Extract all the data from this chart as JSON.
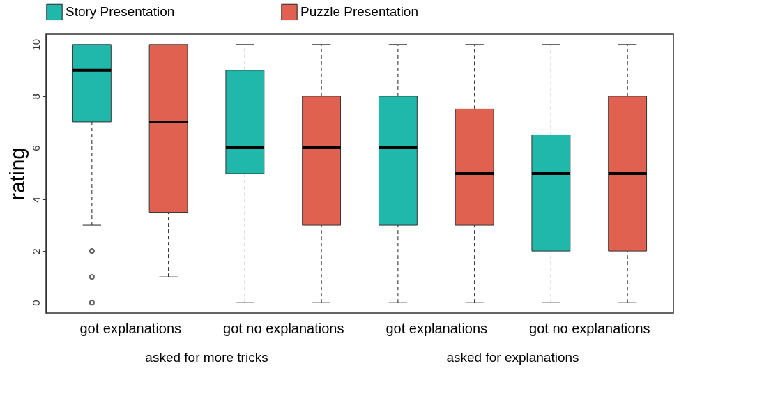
{
  "chart_data": {
    "type": "box",
    "ylabel": "rating",
    "categories": [
      "got explanations",
      "got no explanations",
      "got explanations",
      "got no explanations"
    ],
    "annotations": [
      "asked for more tricks",
      "asked for explanations"
    ],
    "ylim": [
      -0.4,
      10.4
    ],
    "yticks": [
      0,
      2,
      4,
      6,
      8,
      10
    ],
    "grid": false,
    "legend": "top",
    "series": [
      {
        "name": "Story Presentation",
        "color": "#20b8aa",
        "boxes": [
          {
            "low": 3,
            "q1": 7,
            "median": 9,
            "q3": 10,
            "high": 10,
            "outliers": [
              0,
              1,
              2
            ]
          },
          {
            "low": 0,
            "q1": 5,
            "median": 6,
            "q3": 9,
            "high": 10
          },
          {
            "low": 0,
            "q1": 3,
            "median": 6,
            "q3": 8,
            "high": 10
          },
          {
            "low": 0,
            "q1": 2,
            "median": 5,
            "q3": 6.5,
            "high": 10
          }
        ]
      },
      {
        "name": "Puzzle Presentation",
        "color": "#e06150",
        "boxes": [
          {
            "low": 1,
            "q1": 3.5,
            "median": 7,
            "q3": 10,
            "high": 10
          },
          {
            "low": 0,
            "q1": 3,
            "median": 6,
            "q3": 8,
            "high": 10
          },
          {
            "low": 0,
            "q1": 3,
            "median": 5,
            "q3": 7.5,
            "high": 10
          },
          {
            "low": 0,
            "q1": 2,
            "median": 5,
            "q3": 8,
            "high": 10
          }
        ]
      }
    ]
  }
}
